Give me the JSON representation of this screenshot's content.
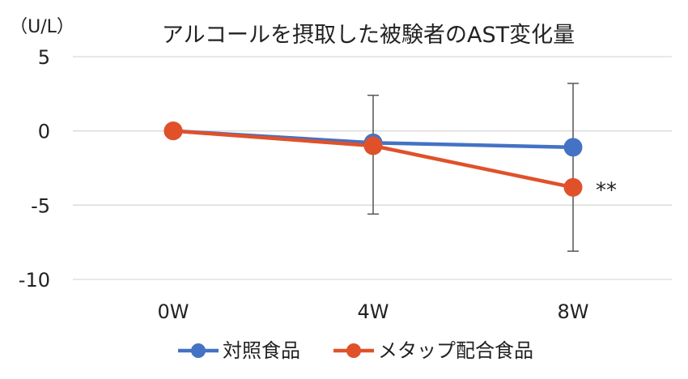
{
  "chart_data": {
    "type": "line",
    "title": "アルコールを摂取した被験者のAST変化量",
    "ylabel": "（U/L）",
    "xlabel": "",
    "categories": [
      "0W",
      "4W",
      "8W"
    ],
    "ylim": [
      -10,
      5
    ],
    "yticks": [
      5,
      0,
      -5,
      -10
    ],
    "ytick_labels": [
      "5",
      "0",
      "-5",
      "-10"
    ],
    "grid": true,
    "legend_position": "bottom",
    "series": [
      {
        "name": "対照食品",
        "color": "#4472C4",
        "values": [
          0,
          -0.8,
          -1.1
        ],
        "error_bars": null
      },
      {
        "name": "メタップ配合食品",
        "color": "#E0512A",
        "values": [
          0,
          -1.0,
          -3.8
        ],
        "error_bars": [
          null,
          [
            -5.6,
            2.4
          ],
          [
            -8.1,
            3.2
          ]
        ]
      }
    ],
    "annotations": [
      {
        "text": "**",
        "category": "8W",
        "series": "メタップ配合食品"
      }
    ]
  }
}
